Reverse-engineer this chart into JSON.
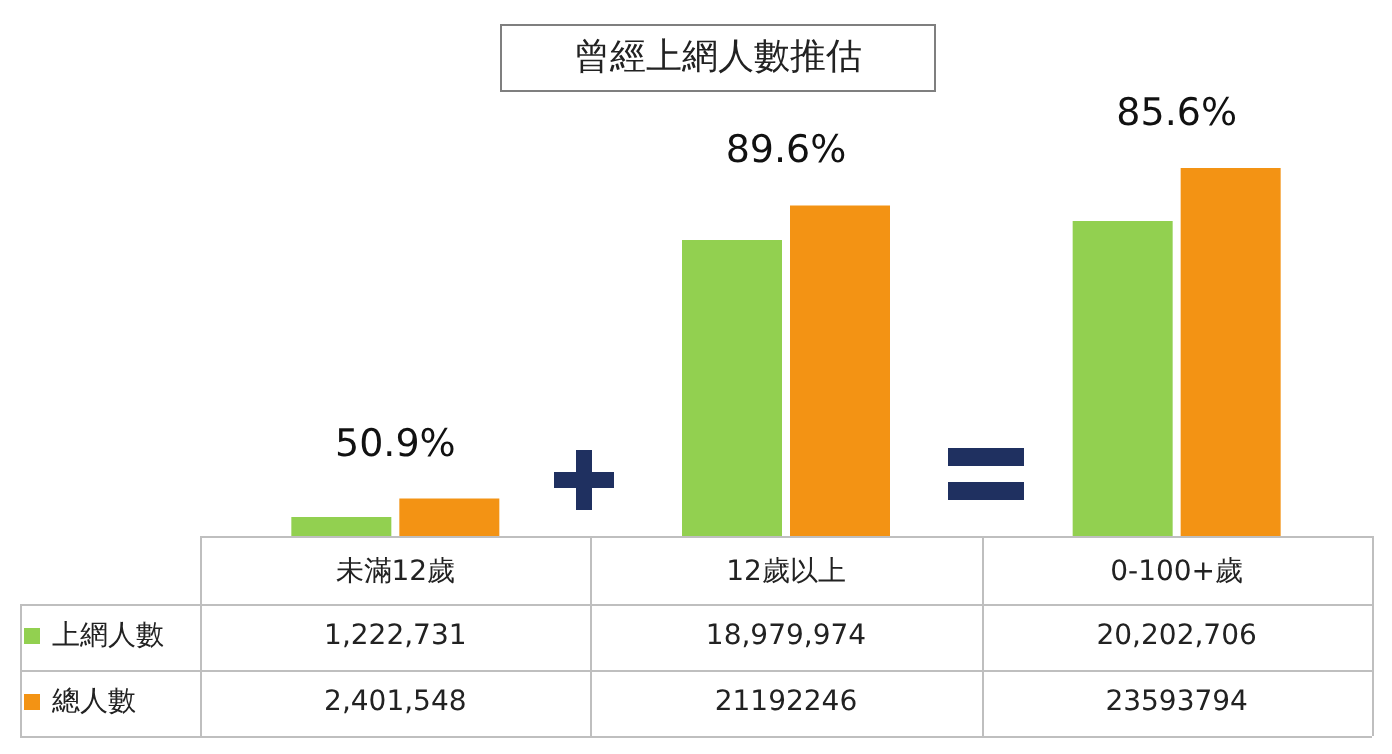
{
  "chart_data": {
    "type": "bar",
    "title": "曾經上網人數推估",
    "categories": [
      "未滿12歲",
      "12歲以上",
      "0-100+歲"
    ],
    "series": [
      {
        "name": "上網人數",
        "color": "#92d050",
        "values": [
          1222731,
          18979974,
          20202706
        ],
        "value_labels": [
          "1,222,731",
          "18,979,974",
          "20,202,706"
        ]
      },
      {
        "name": "總人數",
        "color": "#f39314",
        "values": [
          2401548,
          21192246,
          23593794
        ],
        "value_labels": [
          "2,401,548",
          "21192246",
          "23593794"
        ]
      }
    ],
    "annotations": [
      "50.9%",
      "89.6%",
      "85.6%"
    ],
    "legend": "bottom left",
    "grid": false
  }
}
